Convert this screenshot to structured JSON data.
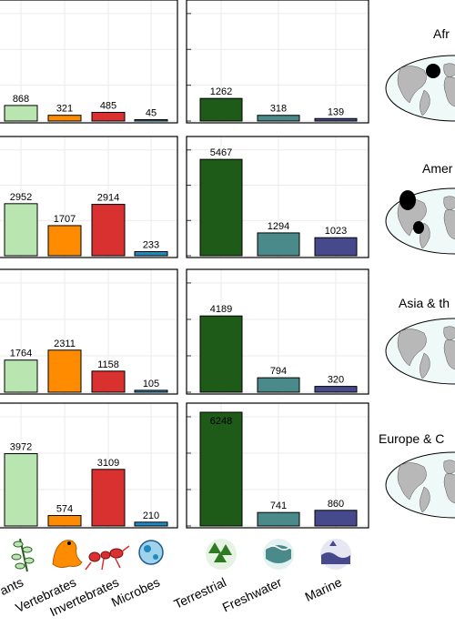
{
  "chart_data": {
    "type": "bar",
    "taxa_categories": [
      "Plants",
      "Vertebrates",
      "Invertebrates",
      "Microbes"
    ],
    "taxa_labels_visible": [
      "ants",
      "Vertebrates",
      "Invertebrates",
      "Microbes"
    ],
    "realm_categories": [
      "Terrestrial",
      "Freshwater",
      "Marine"
    ],
    "colors": {
      "taxa": [
        "#b8e5b0",
        "#ff8c00",
        "#d93030",
        "#1f8ac0"
      ],
      "realm": [
        "#1e5a18",
        "#4a8a8a",
        "#464a8c"
      ]
    },
    "panels": [
      {
        "region": "Afr",
        "taxa_values": [
          868,
          321,
          485,
          45
        ],
        "realm_values": [
          1262,
          318,
          139
        ]
      },
      {
        "region": "Amer",
        "taxa_values": [
          2952,
          1707,
          2914,
          233
        ],
        "realm_values": [
          5467,
          1294,
          1023
        ]
      },
      {
        "region": "Asia & th",
        "taxa_values": [
          1764,
          2311,
          1158,
          105
        ],
        "realm_values": [
          4189,
          794,
          320
        ]
      },
      {
        "region": "Europe & C",
        "taxa_values": [
          3972,
          574,
          3109,
          210
        ],
        "realm_values": [
          6248,
          741,
          860
        ]
      }
    ],
    "icons": {
      "taxa": [
        "plant-icon",
        "frog-icon",
        "ant-icon",
        "microbe-icon"
      ],
      "realm": [
        "forest-icon",
        "freshwater-icon",
        "marine-icon"
      ]
    },
    "grid": true
  }
}
